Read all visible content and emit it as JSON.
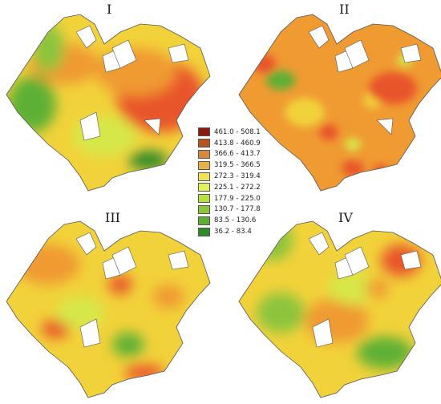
{
  "panels": [
    {
      "label": "I"
    },
    {
      "label": "II"
    },
    {
      "label": "III"
    },
    {
      "label": "IV"
    }
  ],
  "legend": [
    {
      "range": "461.0 - 508.1",
      "color": "#8b1a10"
    },
    {
      "range": "413.8 - 460.9",
      "color": "#b5561c"
    },
    {
      "range": "366.6 - 413.7",
      "color": "#d88a3a"
    },
    {
      "range": "319.5 - 366.5",
      "color": "#e6b247"
    },
    {
      "range": "272.3 - 319.4",
      "color": "#f0e05a"
    },
    {
      "range": "225.1 - 272.2",
      "color": "#e2f25a"
    },
    {
      "range": "177.9 - 225.0",
      "color": "#b8e044"
    },
    {
      "range": "130.7 - 177.8",
      "color": "#8cc43c"
    },
    {
      "range": "83.5 - 130.6",
      "color": "#5fae34"
    },
    {
      "range": "36.2 - 83.4",
      "color": "#2e8a2a"
    }
  ],
  "map_colors": {
    "orange_red": "#e8542a",
    "orange": "#f09a32",
    "yellow": "#f2d23a",
    "yellow_green": "#d6e84a",
    "green": "#5db036",
    "outline": "#555555"
  }
}
